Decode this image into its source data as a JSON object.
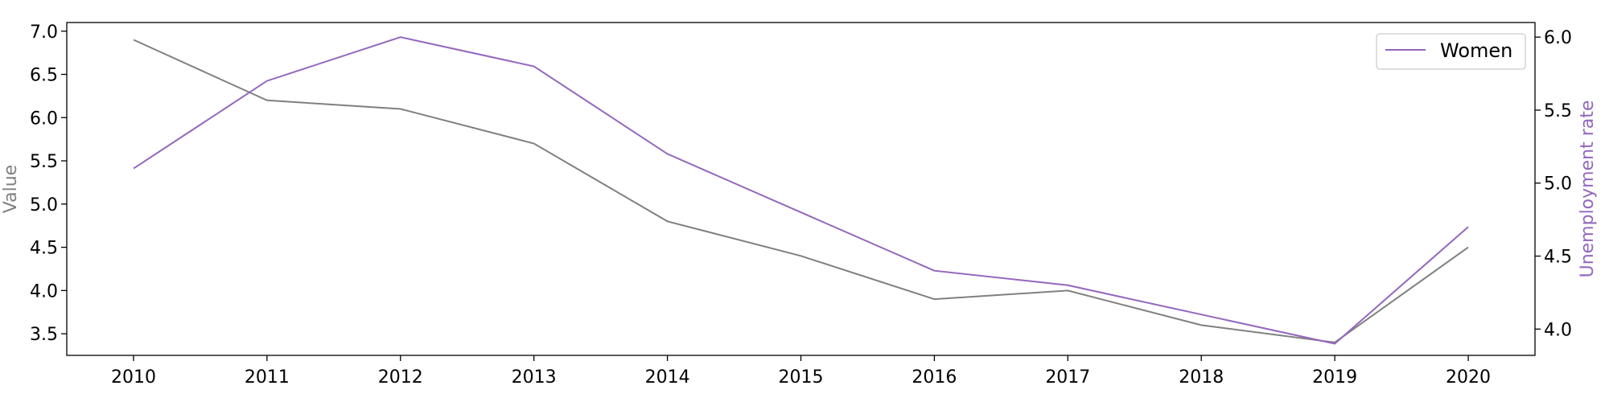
{
  "chart_data": {
    "type": "line",
    "x": [
      2010,
      2011,
      2012,
      2013,
      2014,
      2015,
      2016,
      2017,
      2018,
      2019,
      2020
    ],
    "xticks": [
      "2010",
      "2011",
      "2012",
      "2013",
      "2014",
      "2015",
      "2016",
      "2017",
      "2018",
      "2019",
      "2020"
    ],
    "left_axis": {
      "label": "Value",
      "color": "#808080",
      "ylim": [
        3.25,
        7.1
      ],
      "ticks": [
        "3.5",
        "4.0",
        "4.5",
        "5.0",
        "5.5",
        "6.0",
        "6.5",
        "7.0"
      ]
    },
    "right_axis": {
      "label": "Unemployment rate",
      "color": "#9467bd",
      "ylim": [
        3.82,
        6.1
      ],
      "ticks": [
        "4.0",
        "4.5",
        "5.0",
        "5.5",
        "6.0"
      ]
    },
    "series": [
      {
        "axis": "left",
        "color": "#808080",
        "values": [
          6.9,
          6.2,
          6.1,
          5.7,
          4.8,
          4.4,
          3.9,
          4.0,
          3.6,
          3.4,
          4.5
        ]
      },
      {
        "name": "Women",
        "axis": "right",
        "color": "#9467bd",
        "values": [
          5.1,
          5.7,
          6.0,
          5.8,
          5.2,
          4.8,
          4.4,
          4.3,
          4.1,
          3.9,
          4.7
        ]
      }
    ],
    "legend": {
      "entries": [
        "Women"
      ],
      "placement": "top-right"
    },
    "grid": false
  }
}
